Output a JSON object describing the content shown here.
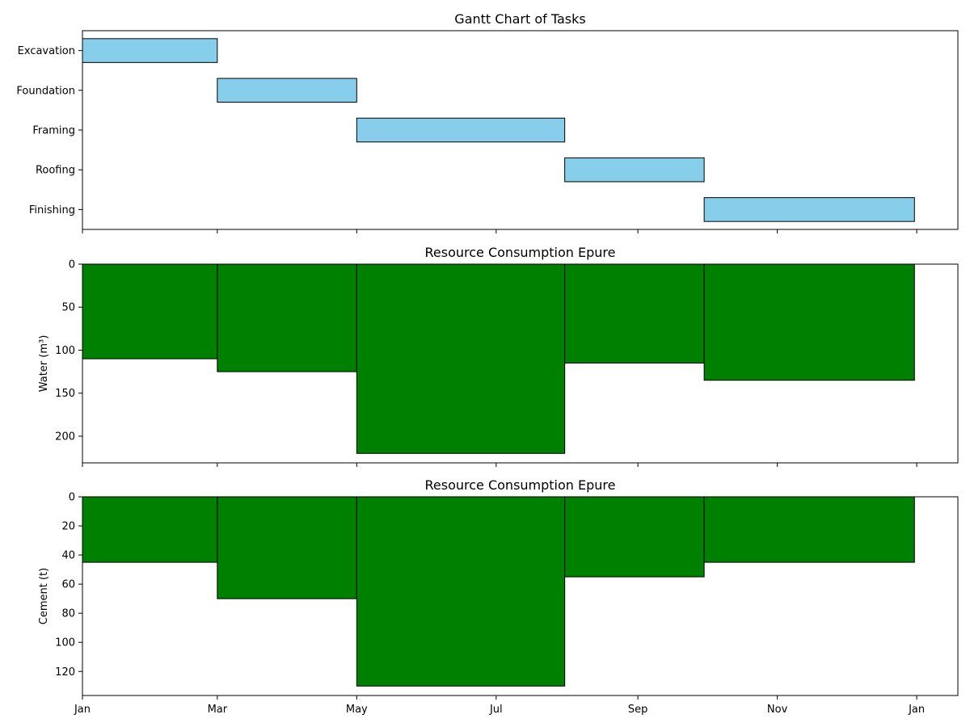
{
  "chart_data": [
    {
      "type": "gantt",
      "title": "Gantt Chart of Tasks",
      "tasks": [
        {
          "name": "Excavation",
          "start": "2023-01-01",
          "end": "2023-03-01"
        },
        {
          "name": "Foundation",
          "start": "2023-03-01",
          "end": "2023-05-01"
        },
        {
          "name": "Framing",
          "start": "2023-05-01",
          "end": "2023-07-31"
        },
        {
          "name": "Roofing",
          "start": "2023-07-31",
          "end": "2023-09-30"
        },
        {
          "name": "Finishing",
          "start": "2023-09-30",
          "end": "2023-12-31"
        }
      ],
      "bar_color": "#87ceeb",
      "xlim": [
        "2023-01-01",
        "2024-01-19"
      ]
    },
    {
      "type": "bar",
      "title": "Resource Consumption Epure",
      "ylabel": "Water (m³)",
      "y_inverted": true,
      "ylim": [
        0,
        231
      ],
      "yticks": [
        0,
        50,
        100,
        150,
        200
      ],
      "bar_color": "#008000",
      "bars": [
        {
          "start": "2023-01-01",
          "end": "2023-03-01",
          "value": 110
        },
        {
          "start": "2023-03-01",
          "end": "2023-05-01",
          "value": 125
        },
        {
          "start": "2023-05-01",
          "end": "2023-07-31",
          "value": 220
        },
        {
          "start": "2023-07-31",
          "end": "2023-09-30",
          "value": 115
        },
        {
          "start": "2023-09-30",
          "end": "2023-12-31",
          "value": 135
        }
      ]
    },
    {
      "type": "bar",
      "title": "Resource Consumption Epure",
      "ylabel": "Cement (t)",
      "y_inverted": true,
      "ylim": [
        0,
        136.5
      ],
      "yticks": [
        0,
        20,
        40,
        60,
        80,
        100,
        120
      ],
      "bar_color": "#008000",
      "bars": [
        {
          "start": "2023-01-01",
          "end": "2023-03-01",
          "value": 45
        },
        {
          "start": "2023-03-01",
          "end": "2023-05-01",
          "value": 70
        },
        {
          "start": "2023-05-01",
          "end": "2023-07-31",
          "value": 130
        },
        {
          "start": "2023-07-31",
          "end": "2023-09-30",
          "value": 55
        },
        {
          "start": "2023-09-30",
          "end": "2023-12-31",
          "value": 45
        }
      ]
    }
  ],
  "x_axis": {
    "ticks": [
      {
        "date": "2023-01-01",
        "label": "Jan"
      },
      {
        "date": "2023-03-01",
        "label": "Mar"
      },
      {
        "date": "2023-05-01",
        "label": "May"
      },
      {
        "date": "2023-07-01",
        "label": "Jul"
      },
      {
        "date": "2023-09-01",
        "label": "Sep"
      },
      {
        "date": "2023-11-01",
        "label": "Nov"
      },
      {
        "date": "2024-01-01",
        "label": "Jan"
      }
    ]
  }
}
